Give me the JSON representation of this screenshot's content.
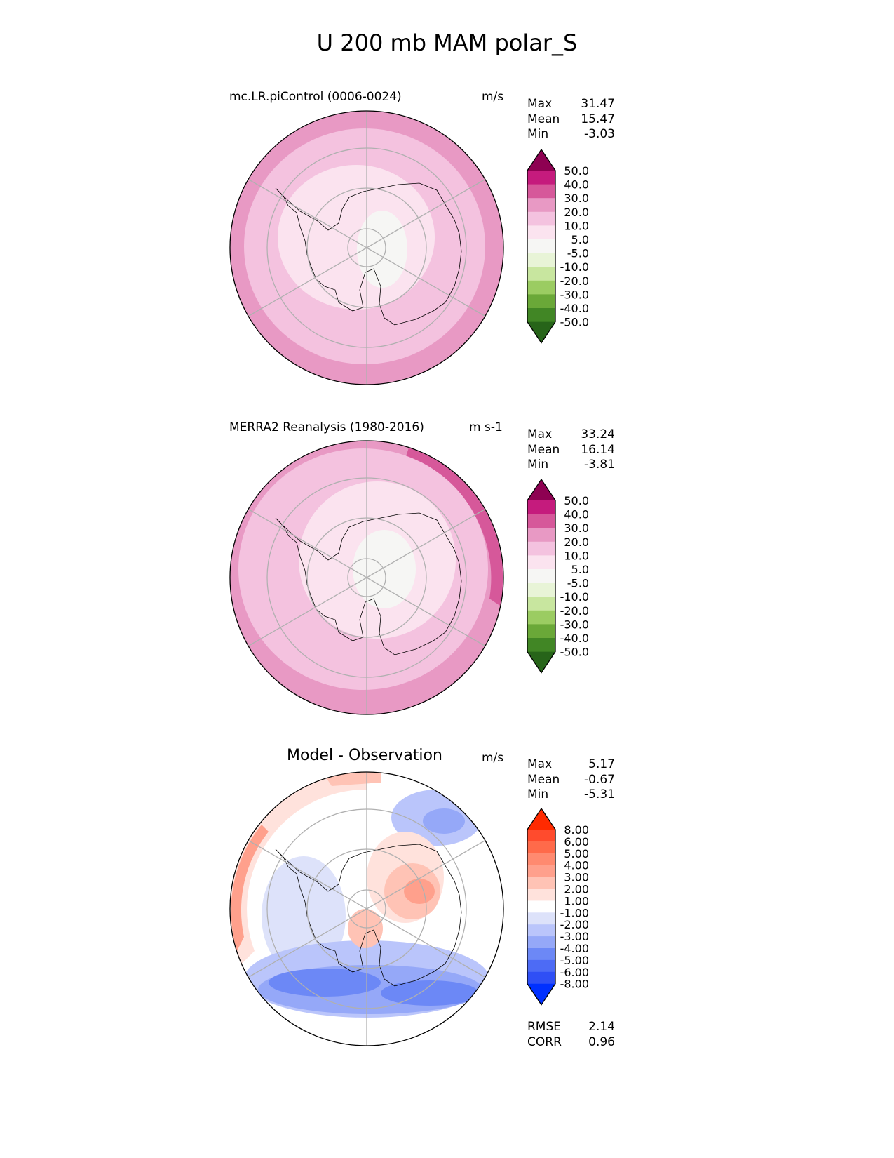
{
  "figure_title": "U 200 mb MAM polar_S",
  "panels": [
    {
      "title": "mc.LR.piControl (0006-0024)",
      "units": "m/s",
      "stats": [
        {
          "label": "Max",
          "value": "31.47"
        },
        {
          "label": "Mean",
          "value": "15.47"
        },
        {
          "label": "Min",
          "value": "-3.03"
        }
      ],
      "colorbar": {
        "levels": [
          "50.0",
          "40.0",
          "30.0",
          "20.0",
          "10.0",
          "5.0",
          "-5.0",
          "-10.0",
          "-20.0",
          "-30.0",
          "-40.0",
          "-50.0"
        ],
        "colors": [
          "#c51b7d",
          "#d6589a",
          "#e899c4",
          "#f4c2df",
          "#fbe3ef",
          "#f6f6f4",
          "#e8f4d7",
          "#c8e69f",
          "#9bcc62",
          "#6aa838",
          "#418625"
        ],
        "over_color": "#8e0152",
        "under_color": "#276419"
      }
    },
    {
      "title": "MERRA2 Reanalysis (1980-2016)",
      "units": "m s-1",
      "stats": [
        {
          "label": "Max",
          "value": "33.24"
        },
        {
          "label": "Mean",
          "value": "16.14"
        },
        {
          "label": "Min",
          "value": "-3.81"
        }
      ],
      "colorbar": {
        "levels": [
          "50.0",
          "40.0",
          "30.0",
          "20.0",
          "10.0",
          "5.0",
          "-5.0",
          "-10.0",
          "-20.0",
          "-30.0",
          "-40.0",
          "-50.0"
        ],
        "colors": [
          "#c51b7d",
          "#d6589a",
          "#e899c4",
          "#f4c2df",
          "#fbe3ef",
          "#f6f6f4",
          "#e8f4d7",
          "#c8e69f",
          "#9bcc62",
          "#6aa838",
          "#418625"
        ],
        "over_color": "#8e0152",
        "under_color": "#276419"
      }
    },
    {
      "title": "Model - Observation",
      "units": "m/s",
      "stats": [
        {
          "label": "Max",
          "value": "5.17"
        },
        {
          "label": "Mean",
          "value": "-0.67"
        },
        {
          "label": "Min",
          "value": "-5.31"
        }
      ],
      "extra_stats": [
        {
          "label": "RMSE",
          "value": "2.14"
        },
        {
          "label": "CORR",
          "value": "0.96"
        }
      ],
      "colorbar": {
        "levels": [
          "8.00",
          "6.00",
          "5.00",
          "4.00",
          "3.00",
          "2.00",
          "1.00",
          "-1.00",
          "-2.00",
          "-3.00",
          "-4.00",
          "-5.00",
          "-6.00",
          "-8.00"
        ],
        "colors": [
          "#ff4b2d",
          "#ff6a4a",
          "#ff8a70",
          "#ffa08c",
          "#ffc3b5",
          "#ffe2dc",
          "#ffffff",
          "#dde2fa",
          "#bac5fb",
          "#95a8f8",
          "#6c88f6",
          "#4d6bf5",
          "#2f4ff5"
        ],
        "over_color": "#ff2a00",
        "under_color": "#0030ff"
      }
    }
  ]
}
